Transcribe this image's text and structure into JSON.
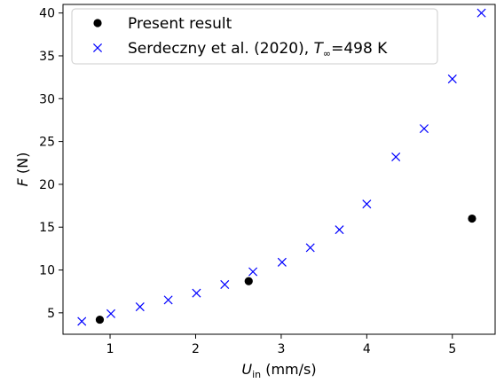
{
  "chart_data": {
    "type": "scatter",
    "xlabel": {
      "main": "U",
      "sub": "in",
      "unit": " (mm/s)"
    },
    "ylabel": {
      "main": "F",
      "unit": " (N)"
    },
    "xlim": [
      0.45,
      5.5
    ],
    "ylim": [
      2.5,
      41.0
    ],
    "xticks": [
      1,
      2,
      3,
      4,
      5
    ],
    "yticks": [
      5,
      10,
      15,
      20,
      25,
      30,
      35,
      40
    ],
    "grid": false,
    "legend_position": "top-left",
    "series": [
      {
        "name": "Present result",
        "marker": "circle",
        "color": "#000000",
        "points": [
          {
            "x": 0.88,
            "y": 4.2
          },
          {
            "x": 2.62,
            "y": 8.7
          },
          {
            "x": 5.23,
            "y": 16.0
          }
        ]
      },
      {
        "name": "Serdeczny et al. (2020), ",
        "name_suffix": {
          "main": "T",
          "sub": "∞",
          "rest": "=498 K"
        },
        "marker": "x",
        "color": "#0000ff",
        "points": [
          {
            "x": 0.67,
            "y": 4.0
          },
          {
            "x": 1.01,
            "y": 4.9
          },
          {
            "x": 1.35,
            "y": 5.7
          },
          {
            "x": 1.68,
            "y": 6.5
          },
          {
            "x": 2.01,
            "y": 7.3
          },
          {
            "x": 2.34,
            "y": 8.3
          },
          {
            "x": 2.67,
            "y": 9.8
          },
          {
            "x": 3.01,
            "y": 10.9
          },
          {
            "x": 3.34,
            "y": 12.6
          },
          {
            "x": 3.68,
            "y": 14.7
          },
          {
            "x": 4.0,
            "y": 17.7
          },
          {
            "x": 4.34,
            "y": 23.2
          },
          {
            "x": 4.67,
            "y": 26.5
          },
          {
            "x": 5.0,
            "y": 32.3
          },
          {
            "x": 5.34,
            "y": 40.0
          }
        ]
      }
    ]
  }
}
